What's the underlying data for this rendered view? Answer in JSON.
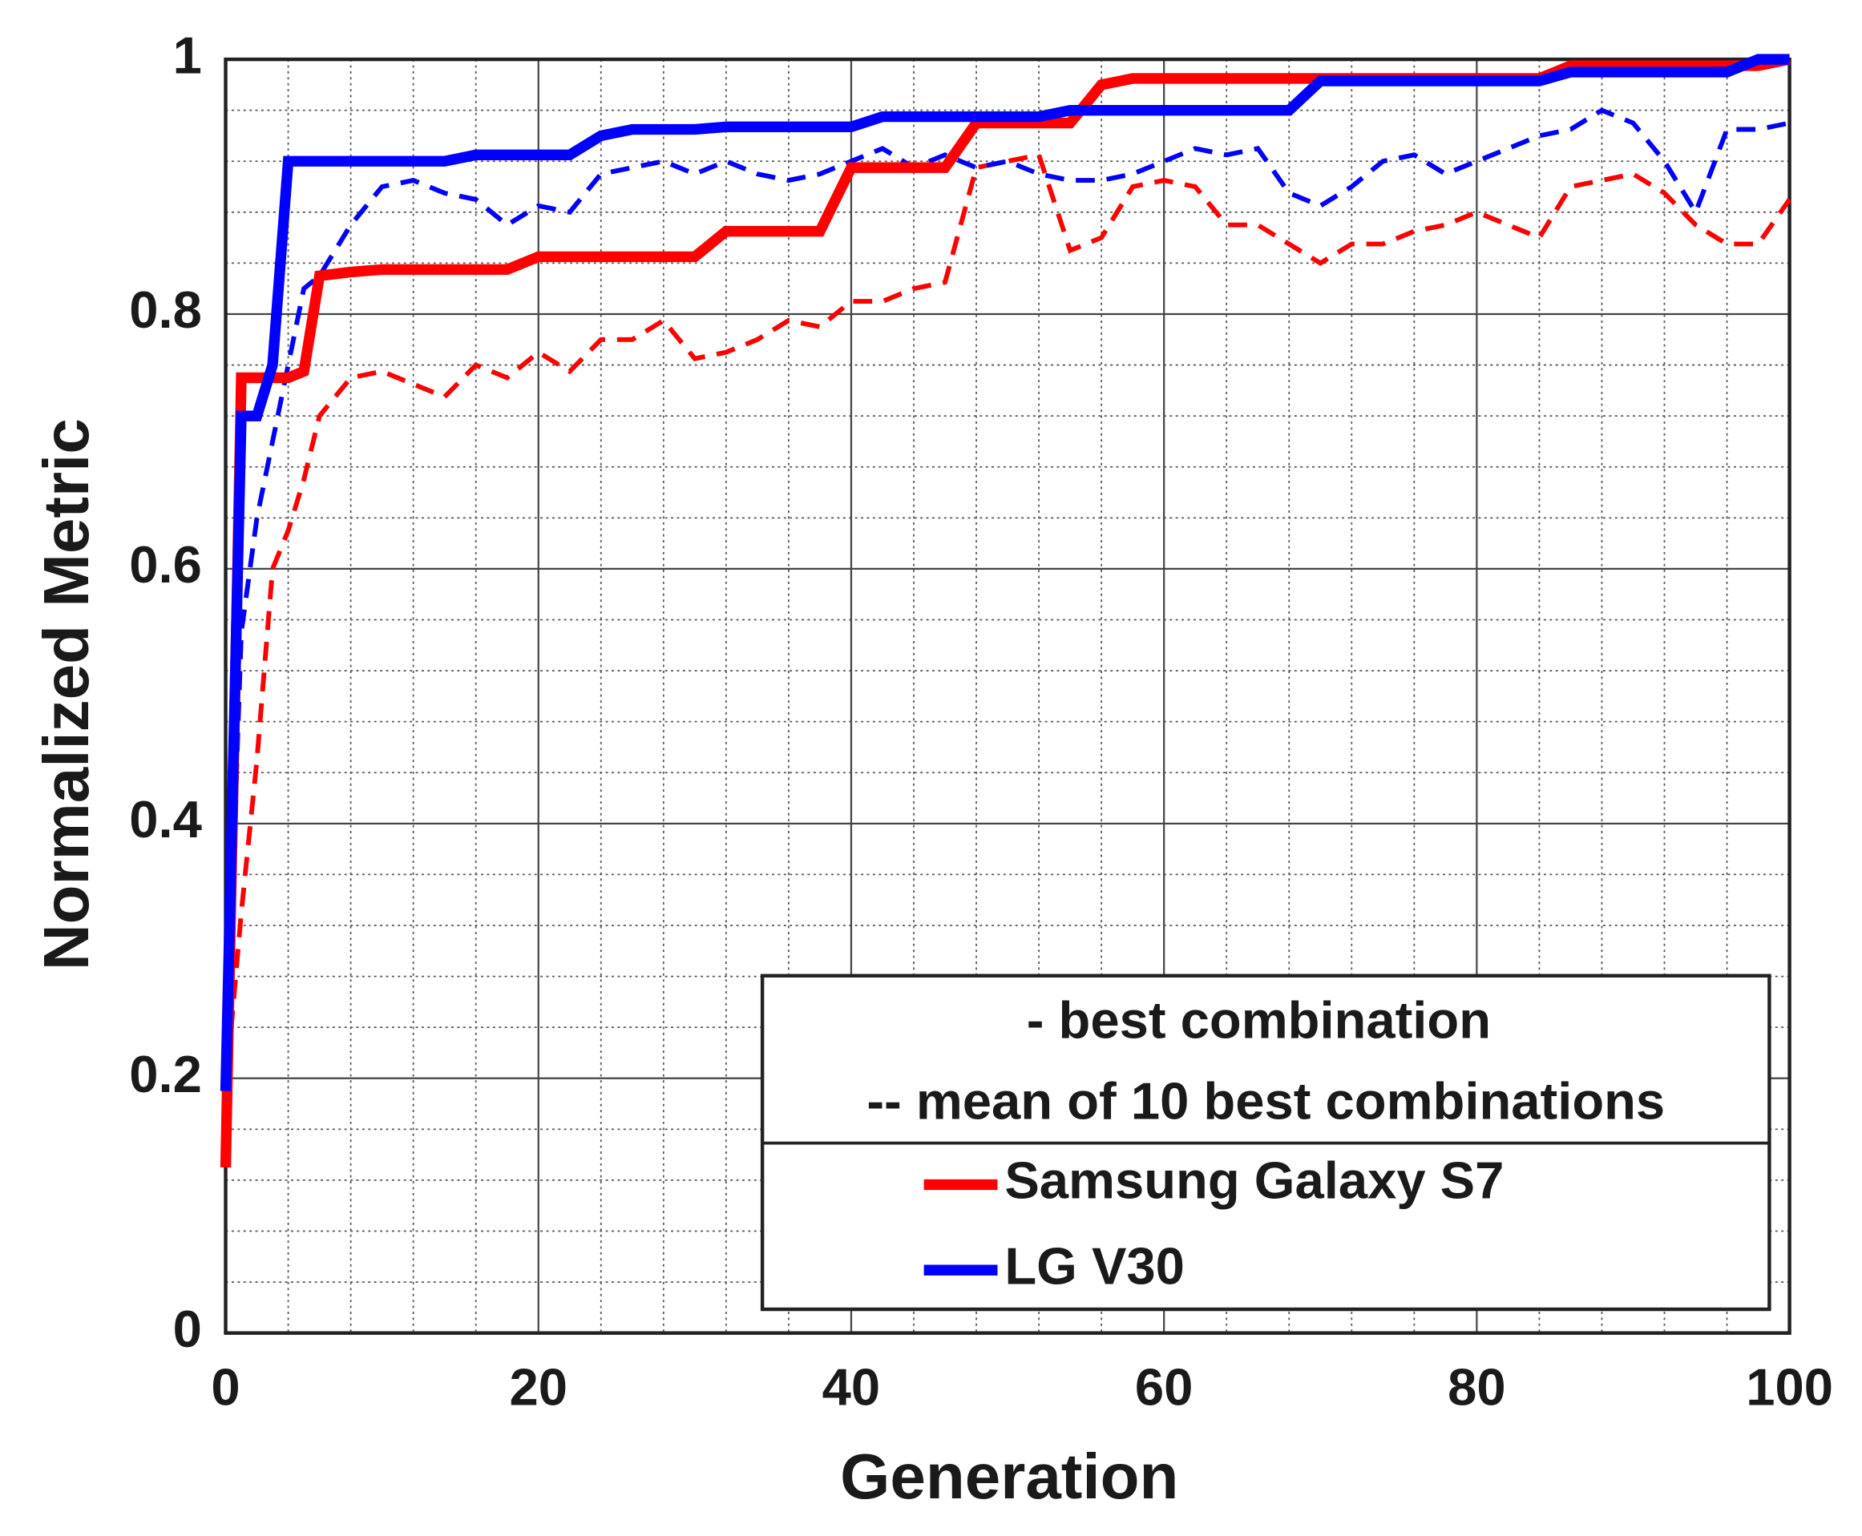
{
  "chart_data": {
    "type": "line",
    "x_label": "Generation",
    "y_label": "Normalized Metric",
    "x": [
      0,
      1,
      2,
      3,
      4,
      5,
      6,
      8,
      10,
      12,
      14,
      16,
      18,
      20,
      22,
      24,
      26,
      28,
      30,
      32,
      34,
      36,
      38,
      40,
      42,
      44,
      46,
      48,
      50,
      52,
      54,
      56,
      58,
      60,
      62,
      64,
      66,
      68,
      70,
      72,
      74,
      76,
      78,
      80,
      82,
      84,
      86,
      88,
      90,
      92,
      94,
      96,
      98,
      100
    ],
    "series": [
      {
        "name": "Samsung Galaxy S7",
        "color": "#ff0000",
        "values": [
          0.13,
          0.75,
          0.75,
          0.75,
          0.75,
          0.755,
          0.83,
          0.833,
          0.835,
          0.835,
          0.835,
          0.835,
          0.835,
          0.845,
          0.845,
          0.845,
          0.845,
          0.845,
          0.845,
          0.865,
          0.865,
          0.865,
          0.865,
          0.915,
          0.915,
          0.915,
          0.915,
          0.95,
          0.95,
          0.95,
          0.95,
          0.98,
          0.985,
          0.985,
          0.985,
          0.985,
          0.985,
          0.985,
          0.985,
          0.985,
          0.985,
          0.985,
          0.985,
          0.985,
          0.985,
          0.985,
          0.995,
          0.995,
          0.995,
          0.995,
          0.995,
          0.995,
          0.995,
          1.0
        ],
        "mean": [
          0.19,
          0.33,
          0.45,
          0.6,
          0.63,
          0.67,
          0.72,
          0.75,
          0.755,
          0.745,
          0.735,
          0.76,
          0.75,
          0.77,
          0.755,
          0.78,
          0.78,
          0.795,
          0.765,
          0.77,
          0.78,
          0.795,
          0.79,
          0.81,
          0.81,
          0.82,
          0.825,
          0.915,
          0.92,
          0.925,
          0.85,
          0.86,
          0.9,
          0.905,
          0.9,
          0.87,
          0.87,
          0.855,
          0.84,
          0.855,
          0.855,
          0.865,
          0.87,
          0.88,
          0.87,
          0.86,
          0.9,
          0.905,
          0.91,
          0.895,
          0.87,
          0.855,
          0.855,
          0.89
        ]
      },
      {
        "name": "LG V30",
        "color": "#0000ff",
        "values": [
          0.19,
          0.72,
          0.72,
          0.76,
          0.92,
          0.92,
          0.92,
          0.92,
          0.92,
          0.92,
          0.92,
          0.925,
          0.925,
          0.925,
          0.925,
          0.94,
          0.945,
          0.945,
          0.945,
          0.947,
          0.947,
          0.947,
          0.947,
          0.947,
          0.955,
          0.955,
          0.955,
          0.955,
          0.955,
          0.955,
          0.96,
          0.96,
          0.96,
          0.96,
          0.96,
          0.96,
          0.96,
          0.96,
          0.983,
          0.983,
          0.983,
          0.983,
          0.983,
          0.983,
          0.983,
          0.983,
          0.99,
          0.99,
          0.99,
          0.99,
          0.99,
          0.99,
          1.0,
          1.0
        ],
        "mean": [
          0.19,
          0.55,
          0.64,
          0.7,
          0.76,
          0.82,
          0.83,
          0.87,
          0.9,
          0.905,
          0.895,
          0.89,
          0.87,
          0.885,
          0.88,
          0.91,
          0.915,
          0.92,
          0.91,
          0.92,
          0.91,
          0.905,
          0.91,
          0.92,
          0.93,
          0.915,
          0.925,
          0.915,
          0.92,
          0.91,
          0.905,
          0.905,
          0.91,
          0.92,
          0.93,
          0.925,
          0.93,
          0.895,
          0.885,
          0.9,
          0.92,
          0.925,
          0.91,
          0.92,
          0.93,
          0.94,
          0.945,
          0.96,
          0.95,
          0.92,
          0.88,
          0.945,
          0.945,
          0.95
        ]
      }
    ],
    "legend_notes": [
      "- best combination",
      "-- mean of 10 best combinations"
    ],
    "legend_position": "lower right",
    "xlim": [
      0,
      100
    ],
    "ylim": [
      0,
      1
    ],
    "xticks": [
      0,
      20,
      40,
      60,
      80,
      100
    ],
    "yticks": [
      0,
      0.2,
      0.4,
      0.6,
      0.8,
      1
    ],
    "grid": true,
    "minor_divisions": 4
  }
}
